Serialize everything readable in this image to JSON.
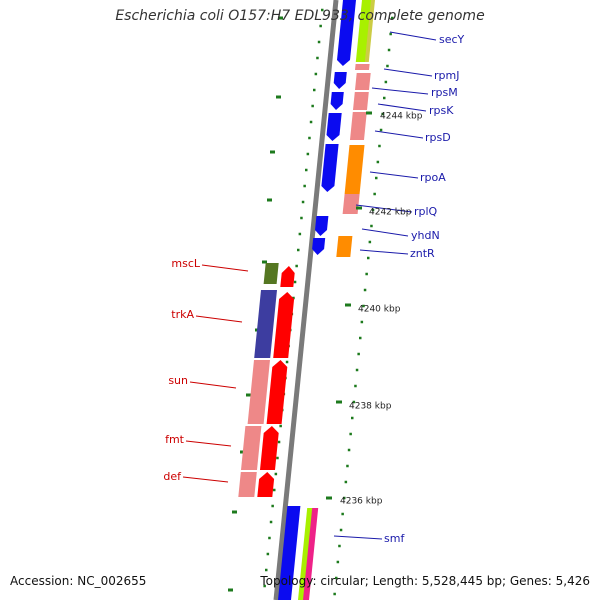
{
  "title": "Escherichia coli O157:H7 EDL933, complete genome",
  "accession": "Accession: NC_002655",
  "topology": "Topology: circular; Length: 5,528,445 bp; Genes: 5,426",
  "colors": {
    "backbone": "#7a7a7a",
    "blue": "#0b0bf0",
    "red": "#ff0000",
    "pink": "#ee8888",
    "lime": "#a8f000",
    "orange": "#ff8c00",
    "olive": "#557722",
    "navy": "#3d3da0",
    "magenta": "#ee2288",
    "tick": "#1d7a1d",
    "label_blue": "#1a1aaa",
    "label_red": "#cc0000"
  },
  "scale_labels": [
    "4244 kbp",
    "4242 kbp",
    "4240 kbp",
    "4238 kbp",
    "4236 kbp"
  ],
  "right_genes": [
    "secY",
    "rpmJ",
    "rpsM",
    "rpsK",
    "rpsD",
    "rpoA",
    "rplQ",
    "yhdN",
    "zntR",
    "smf"
  ],
  "left_genes": [
    "mscL",
    "trkA",
    "sun",
    "fmt",
    "def"
  ]
}
